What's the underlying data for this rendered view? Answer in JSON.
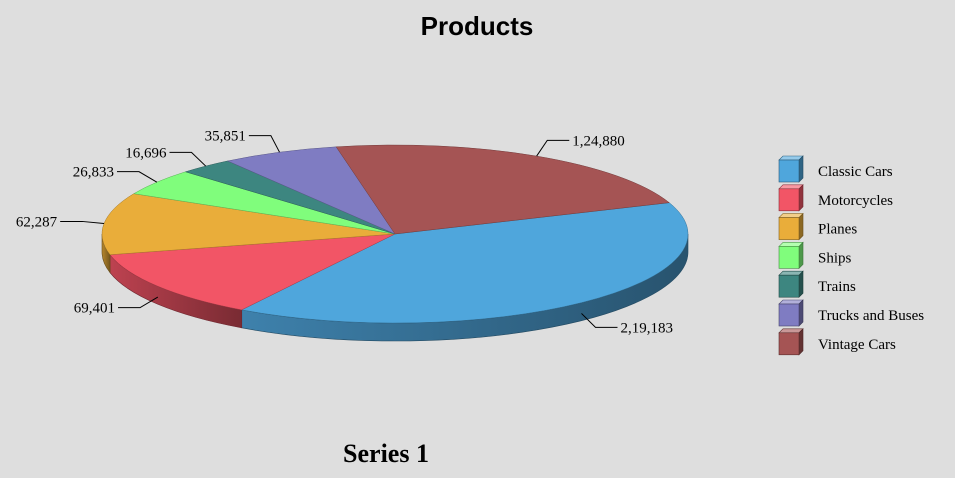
{
  "chart_data": {
    "type": "pie",
    "title": "Products",
    "series_title": "Series 1",
    "categories": [
      "Classic Cars",
      "Motorcycles",
      "Planes",
      "Ships",
      "Trains",
      "Trucks and Buses",
      "Vintage Cars"
    ],
    "values": [
      219183,
      69401,
      62287,
      26833,
      16696,
      35851,
      124880
    ],
    "value_labels": [
      "2,19,183",
      "69,401",
      "62,287",
      "26,833",
      "16,696",
      "35,851",
      "1,24,880"
    ],
    "colors": [
      "#4fa6dc",
      "#f25566",
      "#e9ad3a",
      "#80fd7c",
      "#3d8680",
      "#7f7cc2",
      "#a55454"
    ],
    "legend_position": "right",
    "style": "3d"
  }
}
